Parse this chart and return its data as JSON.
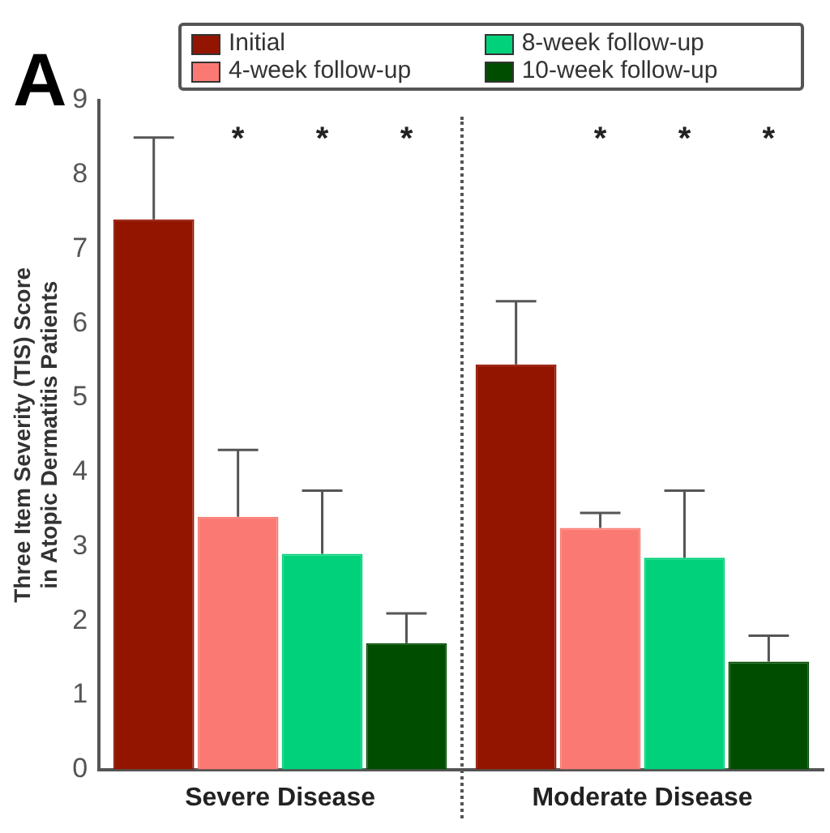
{
  "chart_data": {
    "type": "bar",
    "categories": [
      "Severe Disease",
      "Moderate Disease"
    ],
    "ylabel": "Three Item Severity (TIS) Score\nin Atopic Dermatitis Patients",
    "series": [
      {
        "name": "Initial",
        "color": "#931500",
        "values": [
          7.4,
          5.45
        ],
        "errors": [
          [
            7.4,
            8.5
          ],
          [
            5.45,
            6.3
          ]
        ]
      },
      {
        "name": "4-week follow-up",
        "color": "#fa7a73",
        "values": [
          3.4,
          3.25
        ],
        "errors": [
          [
            3.4,
            4.3
          ],
          [
            3.25,
            3.45
          ]
        ]
      },
      {
        "name": "8-week follow-up",
        "color": "#00d17a",
        "values": [
          2.9,
          2.85
        ],
        "errors": [
          [
            2.9,
            3.75
          ],
          [
            2.85,
            3.75
          ]
        ]
      },
      {
        "name": "10-week follow-up",
        "color": "#004d00",
        "values": [
          1.7,
          1.45
        ],
        "errors": [
          [
            1.7,
            2.1
          ],
          [
            1.45,
            1.8
          ]
        ]
      }
    ],
    "ylim": [
      0,
      9
    ],
    "yticks": [
      0,
      1,
      2,
      3,
      4,
      5,
      6,
      7,
      8,
      9
    ],
    "grid": false,
    "legend": "top",
    "annotations": [
      "A",
      "*",
      "*",
      "*",
      "*",
      "*",
      "*"
    ]
  }
}
